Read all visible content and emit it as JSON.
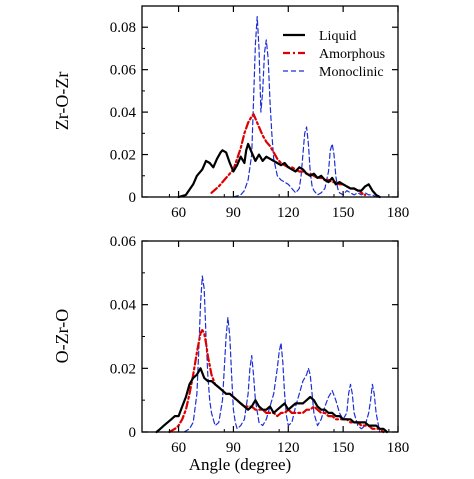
{
  "colors": {
    "liquid": "#000000",
    "amorphous": "#dd0000",
    "monoclinic": "#1f2fd6"
  },
  "chart_data": [
    {
      "type": "line",
      "title": "",
      "xlabel": "",
      "ylabel": "Zr-O-Zr",
      "xlim": [
        40,
        180
      ],
      "ylim": [
        0,
        0.09
      ],
      "xticks": [
        60,
        90,
        120,
        150,
        180
      ],
      "yticks": [
        0,
        0.02,
        0.04,
        0.06,
        0.08
      ],
      "xtick_labels": [
        "60",
        "90",
        "120",
        "150",
        "180"
      ],
      "ytick_labels": [
        "0",
        "0.02",
        "0.04",
        "0.06",
        "0.08"
      ],
      "legend": {
        "placement": "top-right",
        "entries": [
          "Liquid",
          "Amorphous",
          "Monoclinic"
        ]
      },
      "series": [
        {
          "name": "Liquid",
          "style": "solid",
          "x": [
            60,
            64,
            68,
            70,
            73,
            75,
            77,
            79,
            81,
            83,
            84,
            86,
            88,
            90,
            92,
            94,
            96,
            97,
            98,
            100,
            102,
            104,
            106,
            108,
            110,
            112,
            114,
            116,
            118,
            120,
            122,
            124,
            126,
            128,
            130,
            132,
            134,
            136,
            138,
            140,
            142,
            144,
            146,
            148,
            150,
            152,
            154,
            156,
            158,
            160,
            162,
            164,
            166,
            168,
            170
          ],
          "y": [
            0,
            0.001,
            0.006,
            0.01,
            0.013,
            0.017,
            0.016,
            0.014,
            0.018,
            0.021,
            0.022,
            0.021,
            0.016,
            0.012,
            0.015,
            0.019,
            0.016,
            0.022,
            0.025,
            0.021,
            0.017,
            0.02,
            0.017,
            0.019,
            0.018,
            0.017,
            0.016,
            0.015,
            0.016,
            0.014,
            0.013,
            0.012,
            0.014,
            0.013,
            0.011,
            0.01,
            0.011,
            0.009,
            0.01,
            0.008,
            0.007,
            0.009,
            0.006,
            0.007,
            0.006,
            0.005,
            0.004,
            0.004,
            0.003,
            0.003,
            0.005,
            0.006,
            0.003,
            0.001,
            0
          ]
        },
        {
          "name": "Amorphous",
          "style": "dashed",
          "x": [
            78,
            82,
            86,
            88,
            90,
            92,
            94,
            96,
            98,
            100,
            101,
            102,
            104,
            106,
            108,
            110,
            112,
            114,
            116,
            118,
            120,
            122,
            124,
            126,
            128,
            130,
            132,
            134,
            136,
            138,
            140,
            142,
            144,
            146,
            148,
            150,
            152,
            154,
            156,
            158,
            160,
            162
          ],
          "y": [
            0.002,
            0.005,
            0.009,
            0.011,
            0.013,
            0.018,
            0.023,
            0.03,
            0.035,
            0.038,
            0.039,
            0.037,
            0.033,
            0.029,
            0.026,
            0.024,
            0.021,
            0.018,
            0.016,
            0.015,
            0.014,
            0.014,
            0.013,
            0.012,
            0.012,
            0.011,
            0.011,
            0.01,
            0.009,
            0.009,
            0.008,
            0.008,
            0.007,
            0.007,
            0.006,
            0.006,
            0.005,
            0.004,
            0.004,
            0.003,
            0.002,
            0.001
          ]
        },
        {
          "name": "Monoclinic",
          "style": "dashed",
          "x": [
            90,
            94,
            96,
            98,
            100,
            101,
            102,
            103,
            104,
            105,
            106,
            107,
            108,
            109,
            110,
            111,
            112,
            114,
            116,
            118,
            120,
            122,
            124,
            126,
            127,
            128,
            129,
            130,
            131,
            132,
            133,
            134,
            135,
            136,
            138,
            140,
            142,
            143,
            144,
            145,
            146,
            147,
            148,
            150,
            152,
            154,
            156,
            158,
            160,
            162,
            164,
            166,
            168,
            170
          ],
          "y": [
            0,
            0.001,
            0.003,
            0.008,
            0.02,
            0.045,
            0.072,
            0.085,
            0.07,
            0.04,
            0.05,
            0.068,
            0.074,
            0.065,
            0.045,
            0.03,
            0.018,
            0.01,
            0.008,
            0.007,
            0.006,
            0.004,
            0.002,
            0.004,
            0.01,
            0.02,
            0.03,
            0.033,
            0.025,
            0.012,
            0.005,
            0.003,
            0.002,
            0.001,
            0.002,
            0.004,
            0.012,
            0.022,
            0.025,
            0.02,
            0.01,
            0.004,
            0.002,
            0.001,
            0.003,
            0.002,
            0.001,
            0.002,
            0.001,
            0.002,
            0.001,
            0.001,
            0,
            0
          ]
        }
      ]
    },
    {
      "type": "line",
      "title": "",
      "xlabel": "Angle (degree)",
      "ylabel": "O-Zr-O",
      "xlim": [
        40,
        180
      ],
      "ylim": [
        0,
        0.06
      ],
      "xticks": [
        60,
        90,
        120,
        150,
        180
      ],
      "yticks": [
        0,
        0.02,
        0.04,
        0.06
      ],
      "xtick_labels": [
        "60",
        "90",
        "120",
        "150",
        "180"
      ],
      "ytick_labels": [
        "0",
        "0.02",
        "0.04",
        "0.06"
      ],
      "series": [
        {
          "name": "Liquid",
          "style": "solid",
          "x": [
            48,
            50,
            52,
            54,
            56,
            58,
            60,
            62,
            64,
            66,
            68,
            70,
            72,
            74,
            76,
            78,
            80,
            82,
            84,
            86,
            88,
            90,
            92,
            94,
            96,
            98,
            100,
            102,
            104,
            106,
            108,
            110,
            112,
            114,
            116,
            118,
            120,
            122,
            124,
            126,
            128,
            130,
            132,
            134,
            136,
            138,
            140,
            142,
            144,
            146,
            148,
            150,
            152,
            154,
            156,
            158,
            160,
            162,
            164,
            166,
            168,
            170,
            172,
            174
          ],
          "y": [
            0,
            0.001,
            0.002,
            0.003,
            0.004,
            0.005,
            0.005,
            0.008,
            0.011,
            0.015,
            0.017,
            0.018,
            0.02,
            0.017,
            0.016,
            0.016,
            0.015,
            0.014,
            0.013,
            0.012,
            0.012,
            0.011,
            0.01,
            0.009,
            0.008,
            0.007,
            0.008,
            0.01,
            0.008,
            0.007,
            0.007,
            0.008,
            0.006,
            0.007,
            0.008,
            0.009,
            0.007,
            0.008,
            0.009,
            0.009,
            0.009,
            0.01,
            0.011,
            0.01,
            0.008,
            0.007,
            0.007,
            0.006,
            0.006,
            0.005,
            0.005,
            0.004,
            0.004,
            0.004,
            0.003,
            0.003,
            0.003,
            0.003,
            0.002,
            0.002,
            0.002,
            0.001,
            0.001,
            0
          ]
        },
        {
          "name": "Amorphous",
          "style": "dashed",
          "x": [
            55,
            58,
            60,
            62,
            64,
            66,
            68,
            70,
            71,
            72,
            73,
            74,
            75,
            76,
            78,
            80,
            82,
            84,
            86,
            88,
            90,
            92,
            94,
            96,
            98,
            100,
            102,
            104,
            106,
            108,
            110,
            112,
            114,
            116,
            118,
            120,
            122,
            124,
            126,
            128,
            130,
            132,
            134,
            136,
            138,
            140,
            142,
            144,
            146,
            148,
            150,
            152,
            154,
            156,
            158,
            160,
            162,
            164,
            166,
            168,
            170,
            172
          ],
          "y": [
            0,
            0.001,
            0.002,
            0.004,
            0.007,
            0.012,
            0.018,
            0.025,
            0.028,
            0.031,
            0.032,
            0.031,
            0.028,
            0.024,
            0.018,
            0.015,
            0.014,
            0.013,
            0.012,
            0.012,
            0.011,
            0.01,
            0.009,
            0.008,
            0.008,
            0.008,
            0.007,
            0.007,
            0.007,
            0.006,
            0.006,
            0.006,
            0.005,
            0.006,
            0.006,
            0.007,
            0.006,
            0.006,
            0.006,
            0.006,
            0.007,
            0.007,
            0.008,
            0.007,
            0.006,
            0.006,
            0.005,
            0.005,
            0.004,
            0.004,
            0.004,
            0.004,
            0.003,
            0.003,
            0.003,
            0.002,
            0.002,
            0.002,
            0.001,
            0.001,
            0.001,
            0
          ]
        },
        {
          "name": "Monoclinic",
          "style": "dashed",
          "x": [
            63,
            66,
            68,
            70,
            71,
            72,
            73,
            74,
            75,
            76,
            77,
            78,
            79,
            80,
            82,
            84,
            85,
            86,
            87,
            88,
            89,
            90,
            91,
            92,
            94,
            96,
            98,
            99,
            100,
            101,
            102,
            104,
            106,
            108,
            110,
            112,
            114,
            115,
            116,
            117,
            118,
            119,
            120,
            122,
            124,
            126,
            128,
            130,
            131,
            132,
            133,
            134,
            136,
            138,
            140,
            142,
            144,
            146,
            148,
            150,
            152,
            153,
            154,
            155,
            156,
            158,
            160,
            162,
            164,
            165,
            166,
            167,
            168,
            170
          ],
          "y": [
            0,
            0.001,
            0.003,
            0.012,
            0.025,
            0.04,
            0.049,
            0.045,
            0.03,
            0.018,
            0.01,
            0.006,
            0.004,
            0.002,
            0.003,
            0.01,
            0.02,
            0.03,
            0.036,
            0.03,
            0.018,
            0.007,
            0.003,
            0.001,
            0.002,
            0.004,
            0.012,
            0.02,
            0.024,
            0.018,
            0.01,
            0.003,
            0.002,
            0.004,
            0.008,
            0.012,
            0.02,
            0.025,
            0.028,
            0.022,
            0.012,
            0.005,
            0.002,
            0.003,
            0.008,
            0.012,
            0.016,
            0.018,
            0.02,
            0.018,
            0.012,
            0.006,
            0.002,
            0.004,
            0.008,
            0.011,
            0.013,
            0.01,
            0.006,
            0.004,
            0.006,
            0.012,
            0.015,
            0.012,
            0.006,
            0.002,
            0.001,
            0.002,
            0.006,
            0.01,
            0.015,
            0.012,
            0.006,
            0
          ]
        }
      ]
    }
  ]
}
